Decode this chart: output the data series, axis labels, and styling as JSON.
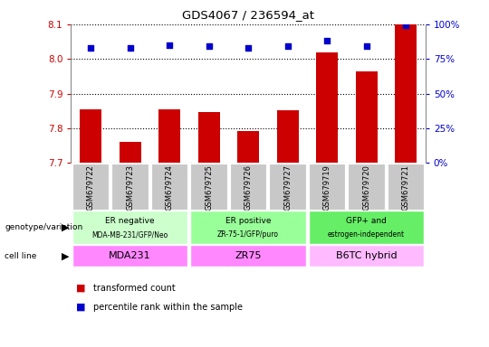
{
  "title": "GDS4067 / 236594_at",
  "samples": [
    "GSM679722",
    "GSM679723",
    "GSM679724",
    "GSM679725",
    "GSM679726",
    "GSM679727",
    "GSM679719",
    "GSM679720",
    "GSM679721"
  ],
  "transformed_count": [
    7.855,
    7.762,
    7.855,
    7.848,
    7.793,
    7.852,
    8.02,
    7.965,
    8.1
  ],
  "percentile_rank": [
    83,
    83,
    85,
    84,
    83,
    84,
    88,
    84,
    99
  ],
  "ylim_left": [
    7.7,
    8.1
  ],
  "ylim_right": [
    0,
    100
  ],
  "yticks_left": [
    7.7,
    7.8,
    7.9,
    8.0,
    8.1
  ],
  "yticks_right": [
    0,
    25,
    50,
    75,
    100
  ],
  "bar_color": "#cc0000",
  "dot_color": "#0000cc",
  "grid_color": "#000000",
  "groups": [
    {
      "label_top": "ER negative",
      "label_bot": "MDA-MB-231/GFP/Neo",
      "start": 0,
      "end": 3,
      "color": "#ccffcc"
    },
    {
      "label_top": "ER positive",
      "label_bot": "ZR-75-1/GFP/puro",
      "start": 3,
      "end": 6,
      "color": "#99ff99"
    },
    {
      "label_top": "GFP+ and",
      "label_bot": "estrogen-independent",
      "start": 6,
      "end": 9,
      "color": "#66ee66"
    }
  ],
  "cell_lines": [
    {
      "label": "MDA231",
      "start": 0,
      "end": 3,
      "color": "#ff88ff"
    },
    {
      "label": "ZR75",
      "start": 3,
      "end": 6,
      "color": "#ff88ff"
    },
    {
      "label": "B6TC hybrid",
      "start": 6,
      "end": 9,
      "color": "#ffbbff"
    }
  ],
  "legend_items": [
    {
      "label": "transformed count",
      "color": "#cc0000"
    },
    {
      "label": "percentile rank within the sample",
      "color": "#0000cc"
    }
  ],
  "left_label_color": "#cc0000",
  "right_label_color": "#0000cc",
  "tick_bg_color": "#c8c8c8",
  "left_side_labels": [
    {
      "text": "genotype/variation",
      "row": "geno"
    },
    {
      "text": "cell line",
      "row": "cell"
    }
  ]
}
